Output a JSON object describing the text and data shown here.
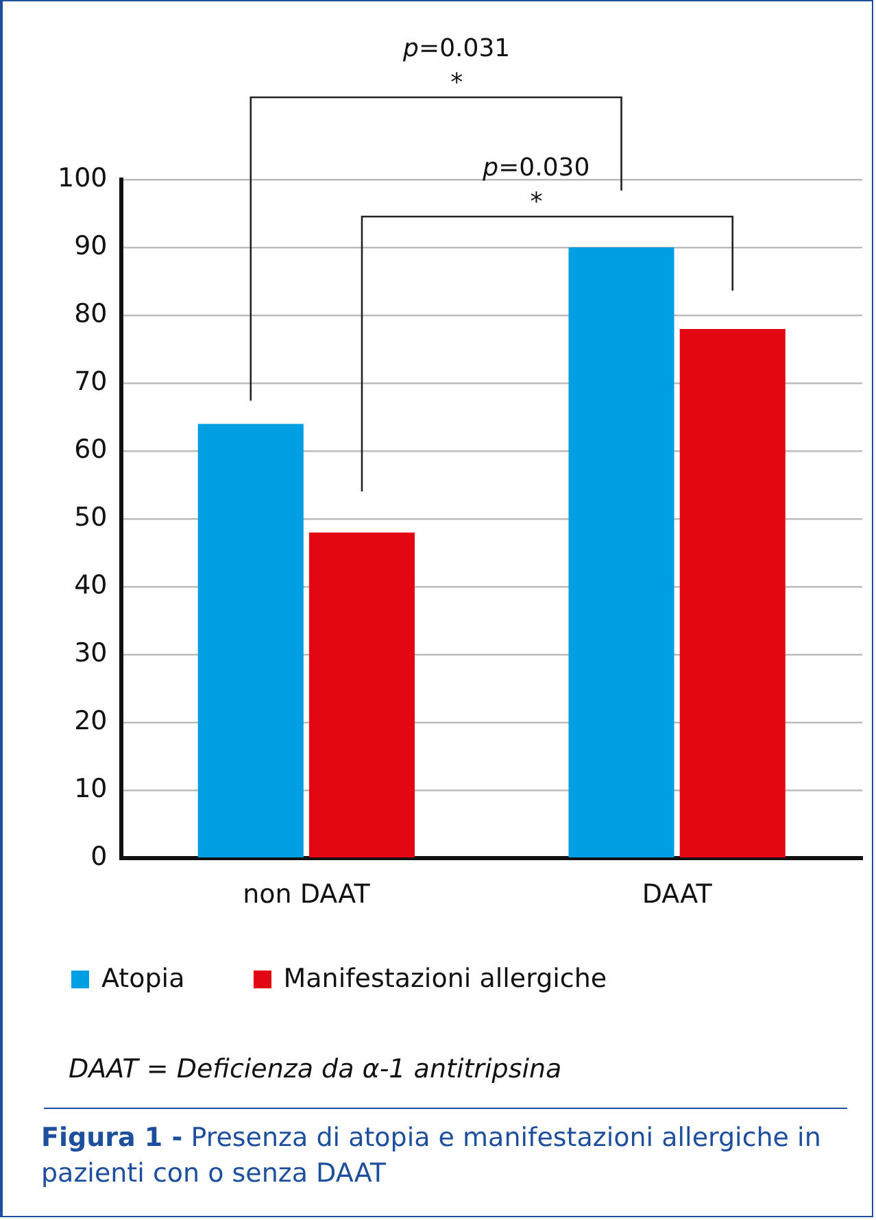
{
  "chart_data": {
    "type": "bar",
    "title": "Figura 1 - Presenza di atopia e manifestazioni allergiche in pazienti con o senza DAAT",
    "categories": [
      "non DAAT",
      "DAAT"
    ],
    "series": [
      {
        "name": "Atopia",
        "color": "#009fe3",
        "values": [
          64,
          90
        ]
      },
      {
        "name": "Manifestazioni allergiche",
        "color": "#e30613",
        "values": [
          48,
          78
        ]
      }
    ],
    "ylim": [
      0,
      100
    ],
    "yticks": [
      0,
      10,
      20,
      30,
      40,
      50,
      60,
      70,
      80,
      90,
      100
    ],
    "grid": "y",
    "legend": "bottom",
    "annotations": [
      "p=0.031",
      "*",
      "p=0.030",
      "*",
      "DAAT = Deficienza da α-1 antitripsina"
    ]
  }
}
